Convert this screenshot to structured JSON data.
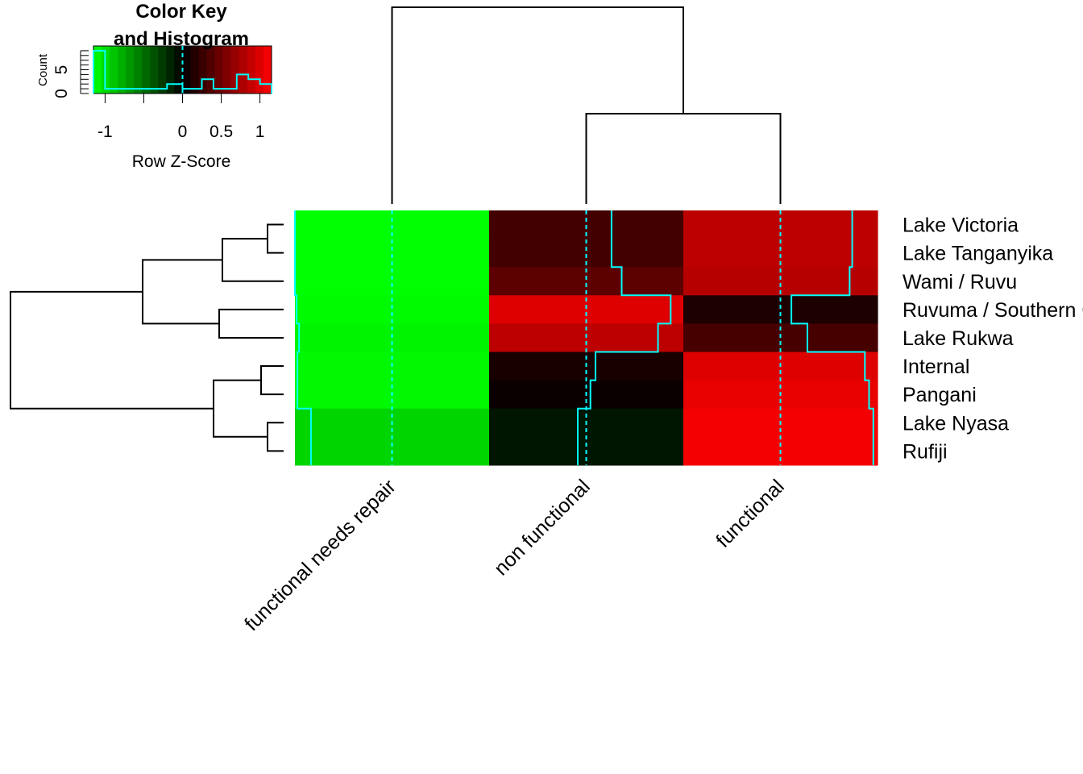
{
  "chart_data": {
    "type": "heatmap",
    "columns": [
      "functional needs repair",
      "non functional",
      "functional"
    ],
    "rows": [
      "Lake Victoria",
      "Lake Tanganyika",
      "Wami / Ruvu",
      "Ruvuma / Southern Coast",
      "Lake Rukwa",
      "Internal",
      "Pangani",
      "Lake Nyasa",
      "Rufiji"
    ],
    "values": [
      [
        -1.15,
        0.3,
        0.85
      ],
      [
        -1.15,
        0.3,
        0.85
      ],
      [
        -1.15,
        0.42,
        0.82
      ],
      [
        -1.13,
        1.0,
        0.13
      ],
      [
        -1.1,
        0.85,
        0.32
      ],
      [
        -1.12,
        0.11,
        1.0
      ],
      [
        -1.12,
        0.05,
        1.05
      ],
      [
        -0.96,
        -0.1,
        1.1
      ],
      [
        -0.96,
        -0.1,
        1.1
      ]
    ],
    "color_key": {
      "title": "Color Key",
      "title2": "and Histogram",
      "xlabel": "Row Z-Score",
      "ylabel": "Count",
      "x_ticks": [
        "-1",
        "0",
        "0.5",
        "1"
      ],
      "y_ticks": [
        "0",
        "5"
      ],
      "range": [
        -1.15,
        1.15
      ],
      "histogram": [
        {
          "from": -1.15,
          "to": -1.0,
          "count": 9
        },
        {
          "from": -1.0,
          "to": -0.5,
          "count": 1
        },
        {
          "from": -0.5,
          "to": -0.2,
          "count": 1
        },
        {
          "from": -0.2,
          "to": 0.0,
          "count": 2
        },
        {
          "from": 0.0,
          "to": 0.25,
          "count": 1
        },
        {
          "from": 0.25,
          "to": 0.4,
          "count": 3
        },
        {
          "from": 0.4,
          "to": 0.7,
          "count": 1
        },
        {
          "from": 0.7,
          "to": 0.85,
          "count": 4
        },
        {
          "from": 0.85,
          "to": 1.0,
          "count": 3
        },
        {
          "from": 1.0,
          "to": 1.15,
          "count": 2
        }
      ]
    },
    "colors": {
      "low": "#00ff00",
      "mid": "#000000",
      "high": "#ff0000",
      "trace": "#00ffff",
      "dendrogram": "#000000"
    },
    "trace": "column"
  }
}
